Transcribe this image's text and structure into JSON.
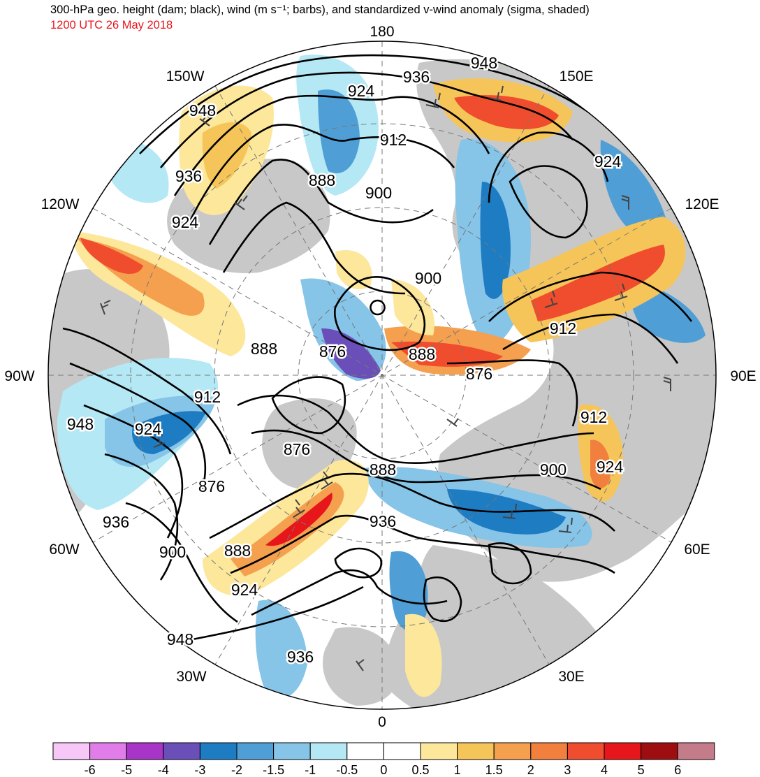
{
  "header": {
    "title": "300-hPa geo. height (dam; black), wind (m s⁻¹; barbs), and standardized v-wind anomaly (sigma, shaded)",
    "valid_time": "1200 UTC 26 May 2018"
  },
  "longitude_labels": {
    "top": "180",
    "bottom": "0",
    "left": "90W",
    "right": "90E",
    "upper_left_outer": "120W",
    "upper_left_inner": "150W",
    "upper_right_inner": "150E",
    "upper_right_outer": "120E",
    "lower_left_outer": "60W",
    "lower_left_inner": "30W",
    "lower_right_outer": "60E",
    "lower_right_inner": "30E"
  },
  "contour_labels": [
    {
      "text": "948",
      "id": "c948a"
    },
    {
      "text": "936",
      "id": "c936a"
    },
    {
      "text": "924",
      "id": "c924a"
    },
    {
      "text": "912",
      "id": "c912a"
    },
    {
      "text": "900",
      "id": "c900a"
    },
    {
      "text": "888",
      "id": "c888a"
    },
    {
      "text": "948",
      "id": "c948b"
    },
    {
      "text": "936",
      "id": "c936b"
    },
    {
      "text": "924",
      "id": "c924b"
    },
    {
      "text": "888",
      "id": "c888b"
    },
    {
      "text": "876",
      "id": "c876a"
    },
    {
      "text": "900",
      "id": "c900b"
    },
    {
      "text": "888",
      "id": "c888c"
    },
    {
      "text": "876",
      "id": "c876b"
    },
    {
      "text": "912",
      "id": "c912b"
    },
    {
      "text": "924",
      "id": "c924c"
    },
    {
      "text": "912",
      "id": "c912c"
    },
    {
      "text": "924",
      "id": "c924d"
    },
    {
      "text": "900",
      "id": "c900c"
    },
    {
      "text": "912",
      "id": "c912d"
    },
    {
      "text": "924",
      "id": "c924e"
    },
    {
      "text": "948",
      "id": "c948c"
    },
    {
      "text": "876",
      "id": "c876c"
    },
    {
      "text": "876",
      "id": "c876d"
    },
    {
      "text": "888",
      "id": "c888d"
    },
    {
      "text": "936",
      "id": "c936c"
    },
    {
      "text": "900",
      "id": "c900d"
    },
    {
      "text": "888",
      "id": "c888e"
    },
    {
      "text": "936",
      "id": "c936d"
    },
    {
      "text": "924",
      "id": "c924f"
    },
    {
      "text": "948",
      "id": "c948d"
    },
    {
      "text": "936",
      "id": "c936e"
    }
  ],
  "colorbar": {
    "colors": [
      "#f7c8f7",
      "#e07de8",
      "#a735c8",
      "#6a4fb8",
      "#1e7cc3",
      "#4f9fd6",
      "#86c4e8",
      "#b4e8f5",
      "#ffffff",
      "#ffffff",
      "#fce79b",
      "#f6c559",
      "#f5a04e",
      "#f17f3e",
      "#ef4d2d",
      "#e7161a",
      "#9e0e10",
      "#c47b8a"
    ],
    "labels": [
      "-6",
      "-5",
      "-4",
      "-3",
      "-2",
      "-1.5",
      "-1",
      "-0.5",
      "0",
      "0.5",
      "1",
      "1.5",
      "2",
      "3",
      "4",
      "5",
      "6"
    ]
  }
}
